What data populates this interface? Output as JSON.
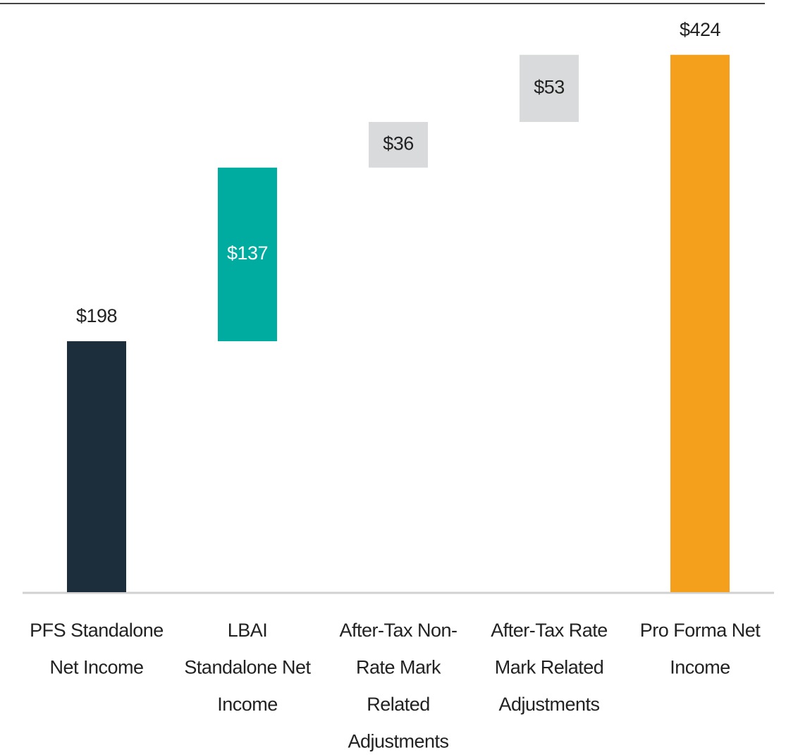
{
  "chart_data": {
    "type": "waterfall",
    "categories": [
      [
        "PFS Standalone",
        "Net Income"
      ],
      [
        "LBAI",
        "Standalone Net",
        "Income"
      ],
      [
        "After-Tax Non-",
        "Rate Mark",
        "Related",
        "Adjustments"
      ],
      [
        "After-Tax Rate",
        "Mark Related",
        "Adjustments"
      ],
      [
        "Pro Forma Net",
        "Income"
      ]
    ],
    "values": [
      198,
      137,
      36,
      53,
      424
    ],
    "value_labels": [
      "$198",
      "$137",
      "$36",
      "$53",
      "$424"
    ],
    "totals": [
      true,
      false,
      false,
      false,
      true
    ],
    "colors": [
      "#1c2d3c",
      "#00ac9f",
      "#d9dadc",
      "#d9dadc",
      "#f5a01d"
    ],
    "label_colors": [
      "#222222",
      "#ffffff",
      "#222222",
      "#222222",
      "#222222"
    ],
    "ylim": [
      0,
      450
    ]
  }
}
